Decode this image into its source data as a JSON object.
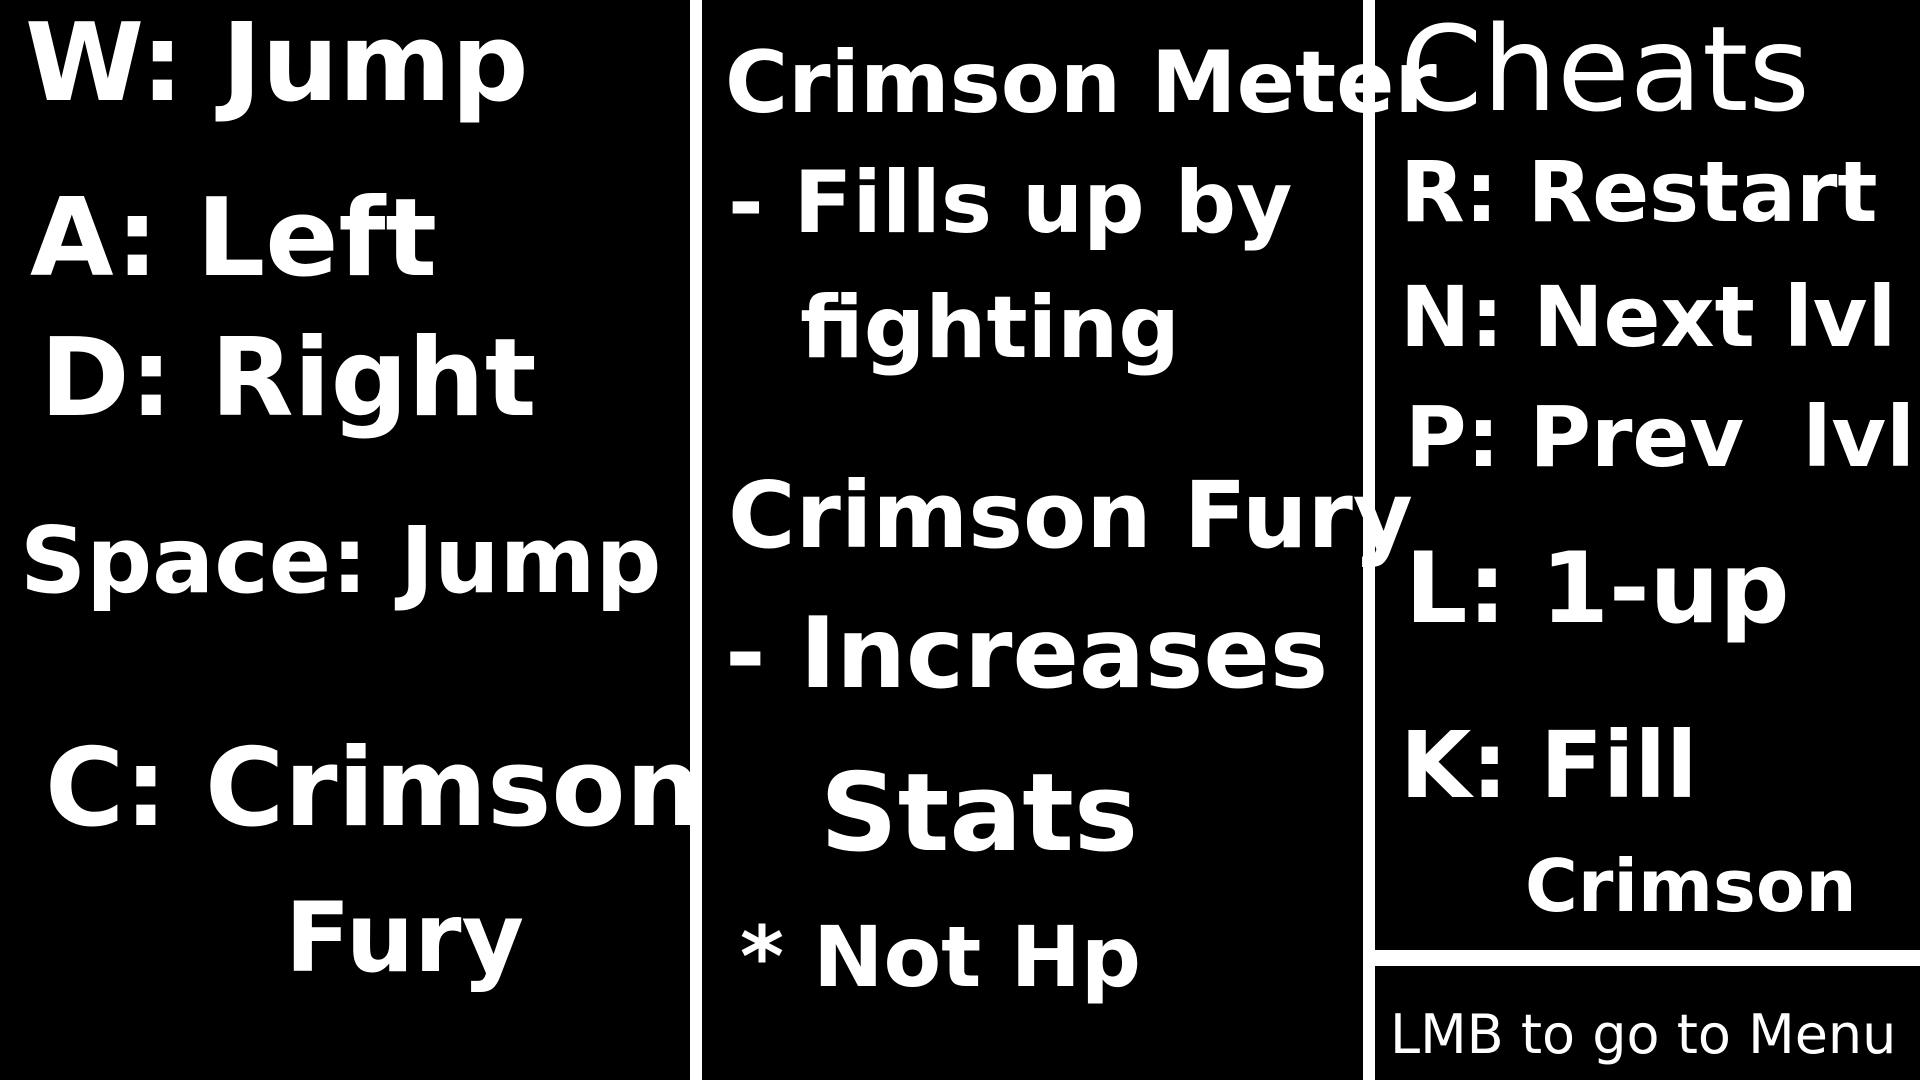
{
  "controls": {
    "w": "W: Jump",
    "a": "A: Left",
    "d": "D: Right",
    "space": "Space: Jump",
    "c_line1": "C: Crimson",
    "c_line2": "Fury"
  },
  "mechanics": {
    "meter_title": "Crimson Meter",
    "meter_desc_line1": "- Fills up by",
    "meter_desc_line2": "fighting",
    "fury_title": "Crimson Fury",
    "fury_desc_line1": "- Increases",
    "fury_desc_line2": "Stats",
    "fury_note": "* Not Hp"
  },
  "cheats": {
    "title": "Cheats",
    "r": "R: Restart",
    "n": "N: Next lvl",
    "p": "P: Prev  lvl",
    "l": "L: 1-up",
    "k_line1": "K: Fill",
    "k_line2": "Crimson"
  },
  "menu_hint": "LMB to go to Menu"
}
